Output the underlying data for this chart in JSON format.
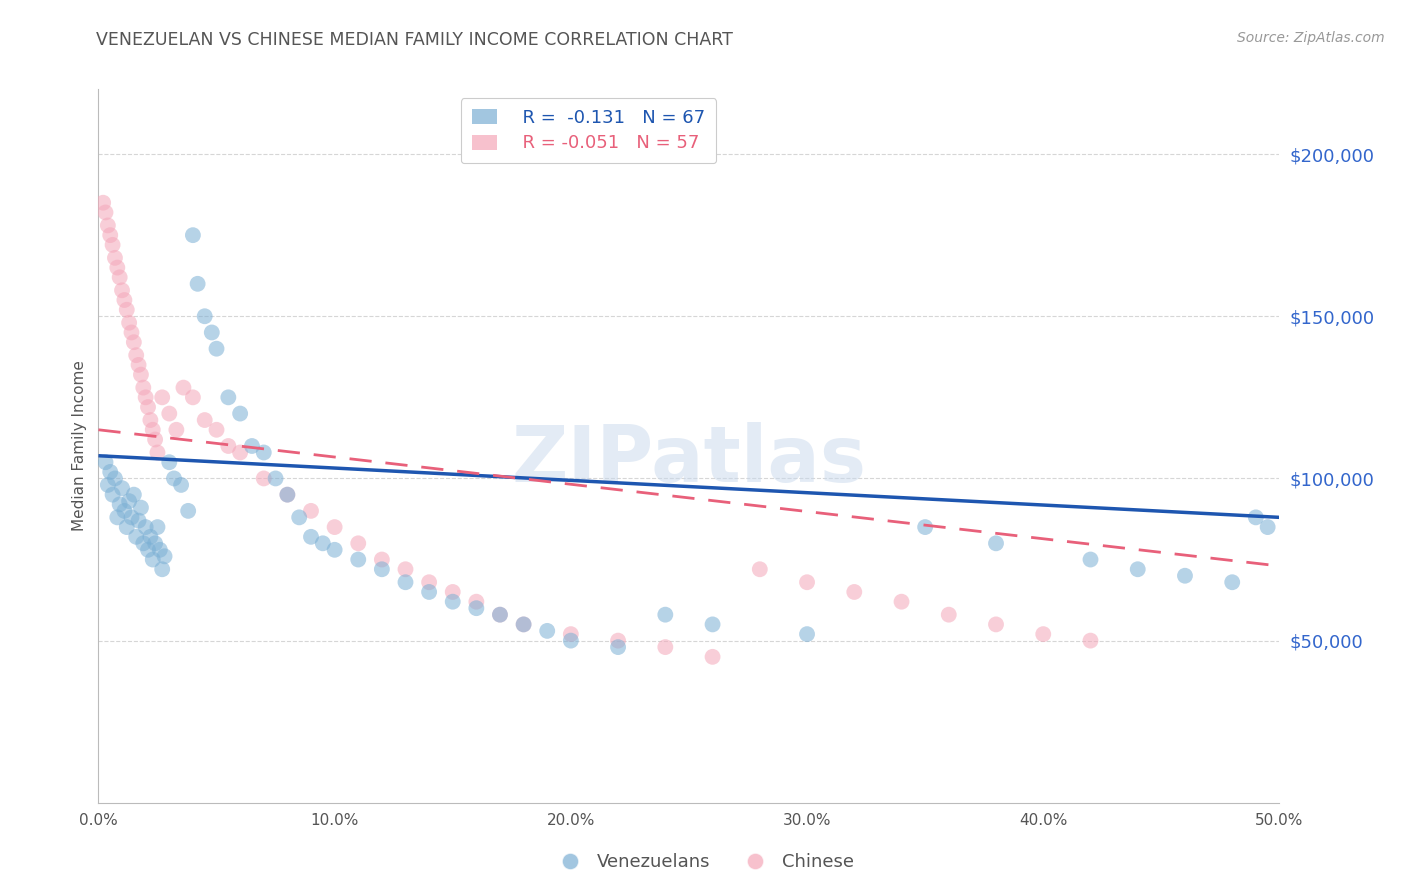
{
  "title": "VENEZUELAN VS CHINESE MEDIAN FAMILY INCOME CORRELATION CHART",
  "source": "Source: ZipAtlas.com",
  "ylabel": "Median Family Income",
  "xlim": [
    0.0,
    0.5
  ],
  "ylim": [
    0,
    220000
  ],
  "xticks": [
    0.0,
    0.1,
    0.2,
    0.3,
    0.4,
    0.5
  ],
  "xticklabels": [
    "0.0%",
    "10.0%",
    "20.0%",
    "30.0%",
    "40.0%",
    "50.0%"
  ],
  "yticks_right": [
    50000,
    100000,
    150000,
    200000
  ],
  "ytick_labels_right": [
    "$50,000",
    "$100,000",
    "$150,000",
    "$200,000"
  ],
  "watermark": "ZIPatlas",
  "legend_r_blue": "R =  -0.131",
  "legend_n_blue": "N = 67",
  "legend_r_pink": "R = -0.051",
  "legend_n_pink": "N = 57",
  "blue_color": "#7BAFD4",
  "pink_color": "#F4A7B9",
  "blue_line_color": "#1E56B0",
  "pink_line_color": "#E8607A",
  "title_color": "#555555",
  "right_axis_color": "#3366CC",
  "grid_color": "#CCCCCC",
  "venezuelan_x": [
    0.003,
    0.004,
    0.005,
    0.006,
    0.007,
    0.008,
    0.009,
    0.01,
    0.011,
    0.012,
    0.013,
    0.014,
    0.015,
    0.016,
    0.017,
    0.018,
    0.019,
    0.02,
    0.021,
    0.022,
    0.023,
    0.024,
    0.025,
    0.026,
    0.027,
    0.028,
    0.03,
    0.032,
    0.035,
    0.038,
    0.04,
    0.042,
    0.045,
    0.048,
    0.05,
    0.055,
    0.06,
    0.065,
    0.07,
    0.075,
    0.08,
    0.085,
    0.09,
    0.095,
    0.1,
    0.11,
    0.12,
    0.13,
    0.14,
    0.15,
    0.16,
    0.17,
    0.18,
    0.19,
    0.2,
    0.22,
    0.24,
    0.26,
    0.3,
    0.35,
    0.38,
    0.42,
    0.44,
    0.46,
    0.48,
    0.49,
    0.495
  ],
  "venezuelan_y": [
    105000,
    98000,
    102000,
    95000,
    100000,
    88000,
    92000,
    97000,
    90000,
    85000,
    93000,
    88000,
    95000,
    82000,
    87000,
    91000,
    80000,
    85000,
    78000,
    82000,
    75000,
    80000,
    85000,
    78000,
    72000,
    76000,
    105000,
    100000,
    98000,
    90000,
    175000,
    160000,
    150000,
    145000,
    140000,
    125000,
    120000,
    110000,
    108000,
    100000,
    95000,
    88000,
    82000,
    80000,
    78000,
    75000,
    72000,
    68000,
    65000,
    62000,
    60000,
    58000,
    55000,
    53000,
    50000,
    48000,
    58000,
    55000,
    52000,
    85000,
    80000,
    75000,
    72000,
    70000,
    68000,
    88000,
    85000
  ],
  "chinese_x": [
    0.002,
    0.003,
    0.004,
    0.005,
    0.006,
    0.007,
    0.008,
    0.009,
    0.01,
    0.011,
    0.012,
    0.013,
    0.014,
    0.015,
    0.016,
    0.017,
    0.018,
    0.019,
    0.02,
    0.021,
    0.022,
    0.023,
    0.024,
    0.025,
    0.027,
    0.03,
    0.033,
    0.036,
    0.04,
    0.045,
    0.05,
    0.055,
    0.06,
    0.07,
    0.08,
    0.09,
    0.1,
    0.11,
    0.12,
    0.13,
    0.14,
    0.15,
    0.16,
    0.17,
    0.18,
    0.2,
    0.22,
    0.24,
    0.26,
    0.28,
    0.3,
    0.32,
    0.34,
    0.36,
    0.38,
    0.4,
    0.42
  ],
  "chinese_y": [
    185000,
    182000,
    178000,
    175000,
    172000,
    168000,
    165000,
    162000,
    158000,
    155000,
    152000,
    148000,
    145000,
    142000,
    138000,
    135000,
    132000,
    128000,
    125000,
    122000,
    118000,
    115000,
    112000,
    108000,
    125000,
    120000,
    115000,
    128000,
    125000,
    118000,
    115000,
    110000,
    108000,
    100000,
    95000,
    90000,
    85000,
    80000,
    75000,
    72000,
    68000,
    65000,
    62000,
    58000,
    55000,
    52000,
    50000,
    48000,
    45000,
    72000,
    68000,
    65000,
    62000,
    58000,
    55000,
    52000,
    50000
  ]
}
